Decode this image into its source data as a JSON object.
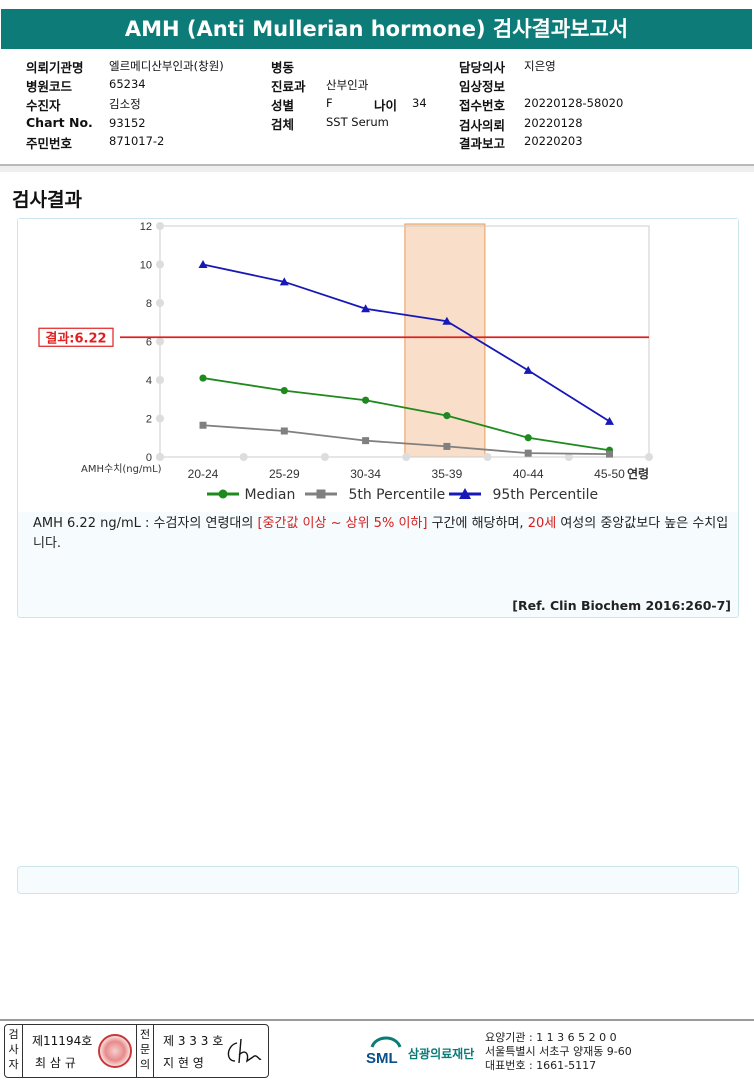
{
  "report_title": "AMH (Anti Mullerian hormone) 검사결과보고서",
  "info": {
    "col1": [
      {
        "label": "의뢰기관명",
        "value": "엘르메디산부인과(창원)"
      },
      {
        "label": "병원코드",
        "value": "65234"
      },
      {
        "label": "수진자",
        "value": "김소정"
      },
      {
        "label": "Chart No.",
        "value": "93152"
      },
      {
        "label": "주민번호",
        "value": "871017-2"
      }
    ],
    "col2": [
      {
        "label": "병동",
        "value": ""
      },
      {
        "label": "진료과",
        "value": "산부인과"
      },
      {
        "label": "성별",
        "value": "F"
      },
      {
        "label": "검체",
        "value": "SST Serum"
      }
    ],
    "age_label": "나이",
    "age_value": "34",
    "col3": [
      {
        "label": "담당의사",
        "value": "지은영"
      },
      {
        "label": "임상정보",
        "value": ""
      },
      {
        "label": "접수번호",
        "value": "20220128-58020"
      },
      {
        "label": "검사의뢰",
        "value": "20220128"
      },
      {
        "label": "결과보고",
        "value": "20220203"
      }
    ]
  },
  "section_title": "검사결과",
  "chart_data": {
    "type": "line",
    "categories": [
      "20-24",
      "25-29",
      "30-34",
      "35-39",
      "40-44",
      "45-50"
    ],
    "xlabel": "연령",
    "ylabel": "AMH수치(ng/mL)",
    "ylim": [
      0,
      12
    ],
    "yticks": [
      0,
      2,
      4,
      6,
      8,
      10,
      12
    ],
    "grid": true,
    "legend_position": "bottom",
    "highlight_category": "35-39",
    "highlight_color": "#f5c9a6",
    "reference_line": {
      "label": "결과:6.22",
      "value": 6.22,
      "color": "#e02020"
    },
    "series": [
      {
        "name": "Median",
        "values": [
          4.1,
          3.45,
          2.95,
          2.15,
          1.0,
          0.35
        ],
        "color": "#1e8a1e",
        "marker": "circle"
      },
      {
        "name": "5th Percentile",
        "values": [
          1.65,
          1.35,
          0.85,
          0.55,
          0.2,
          0.15
        ],
        "color": "#808080",
        "marker": "square"
      },
      {
        "name": "95th Percentile",
        "values": [
          10.0,
          9.1,
          7.7,
          7.05,
          4.5,
          1.85
        ],
        "color": "#1818b8",
        "marker": "triangle"
      }
    ]
  },
  "description": {
    "part1": "AMH  6.22 ng/mL : 수검자의 연령대의 ",
    "range_text": "[중간값 이상 ~ 상위 5% 이하]",
    "part2": " 구간에 해당하며, ",
    "age_text": "20세",
    "part3": " 여성의 중앙값보다 높은 수치입니다."
  },
  "reference": "[Ref. Clin Biochem 2016:260-7]",
  "footer": {
    "inspector_label": "검사자",
    "inspector_no": "제11194호",
    "inspector_name": "최 삼 규",
    "doctor_label": "전문의",
    "doctor_no": "제 3 3 3 호",
    "doctor_name": "지 현 영",
    "org_name": "삼광의료재단",
    "logo_text": "SML",
    "org_code": "요양기관 : 1 1 3 6 5 2 0 0",
    "org_address": "서울특별시 서초구 양재동 9-60",
    "org_phone": "대표번호 : 1661-5117"
  }
}
